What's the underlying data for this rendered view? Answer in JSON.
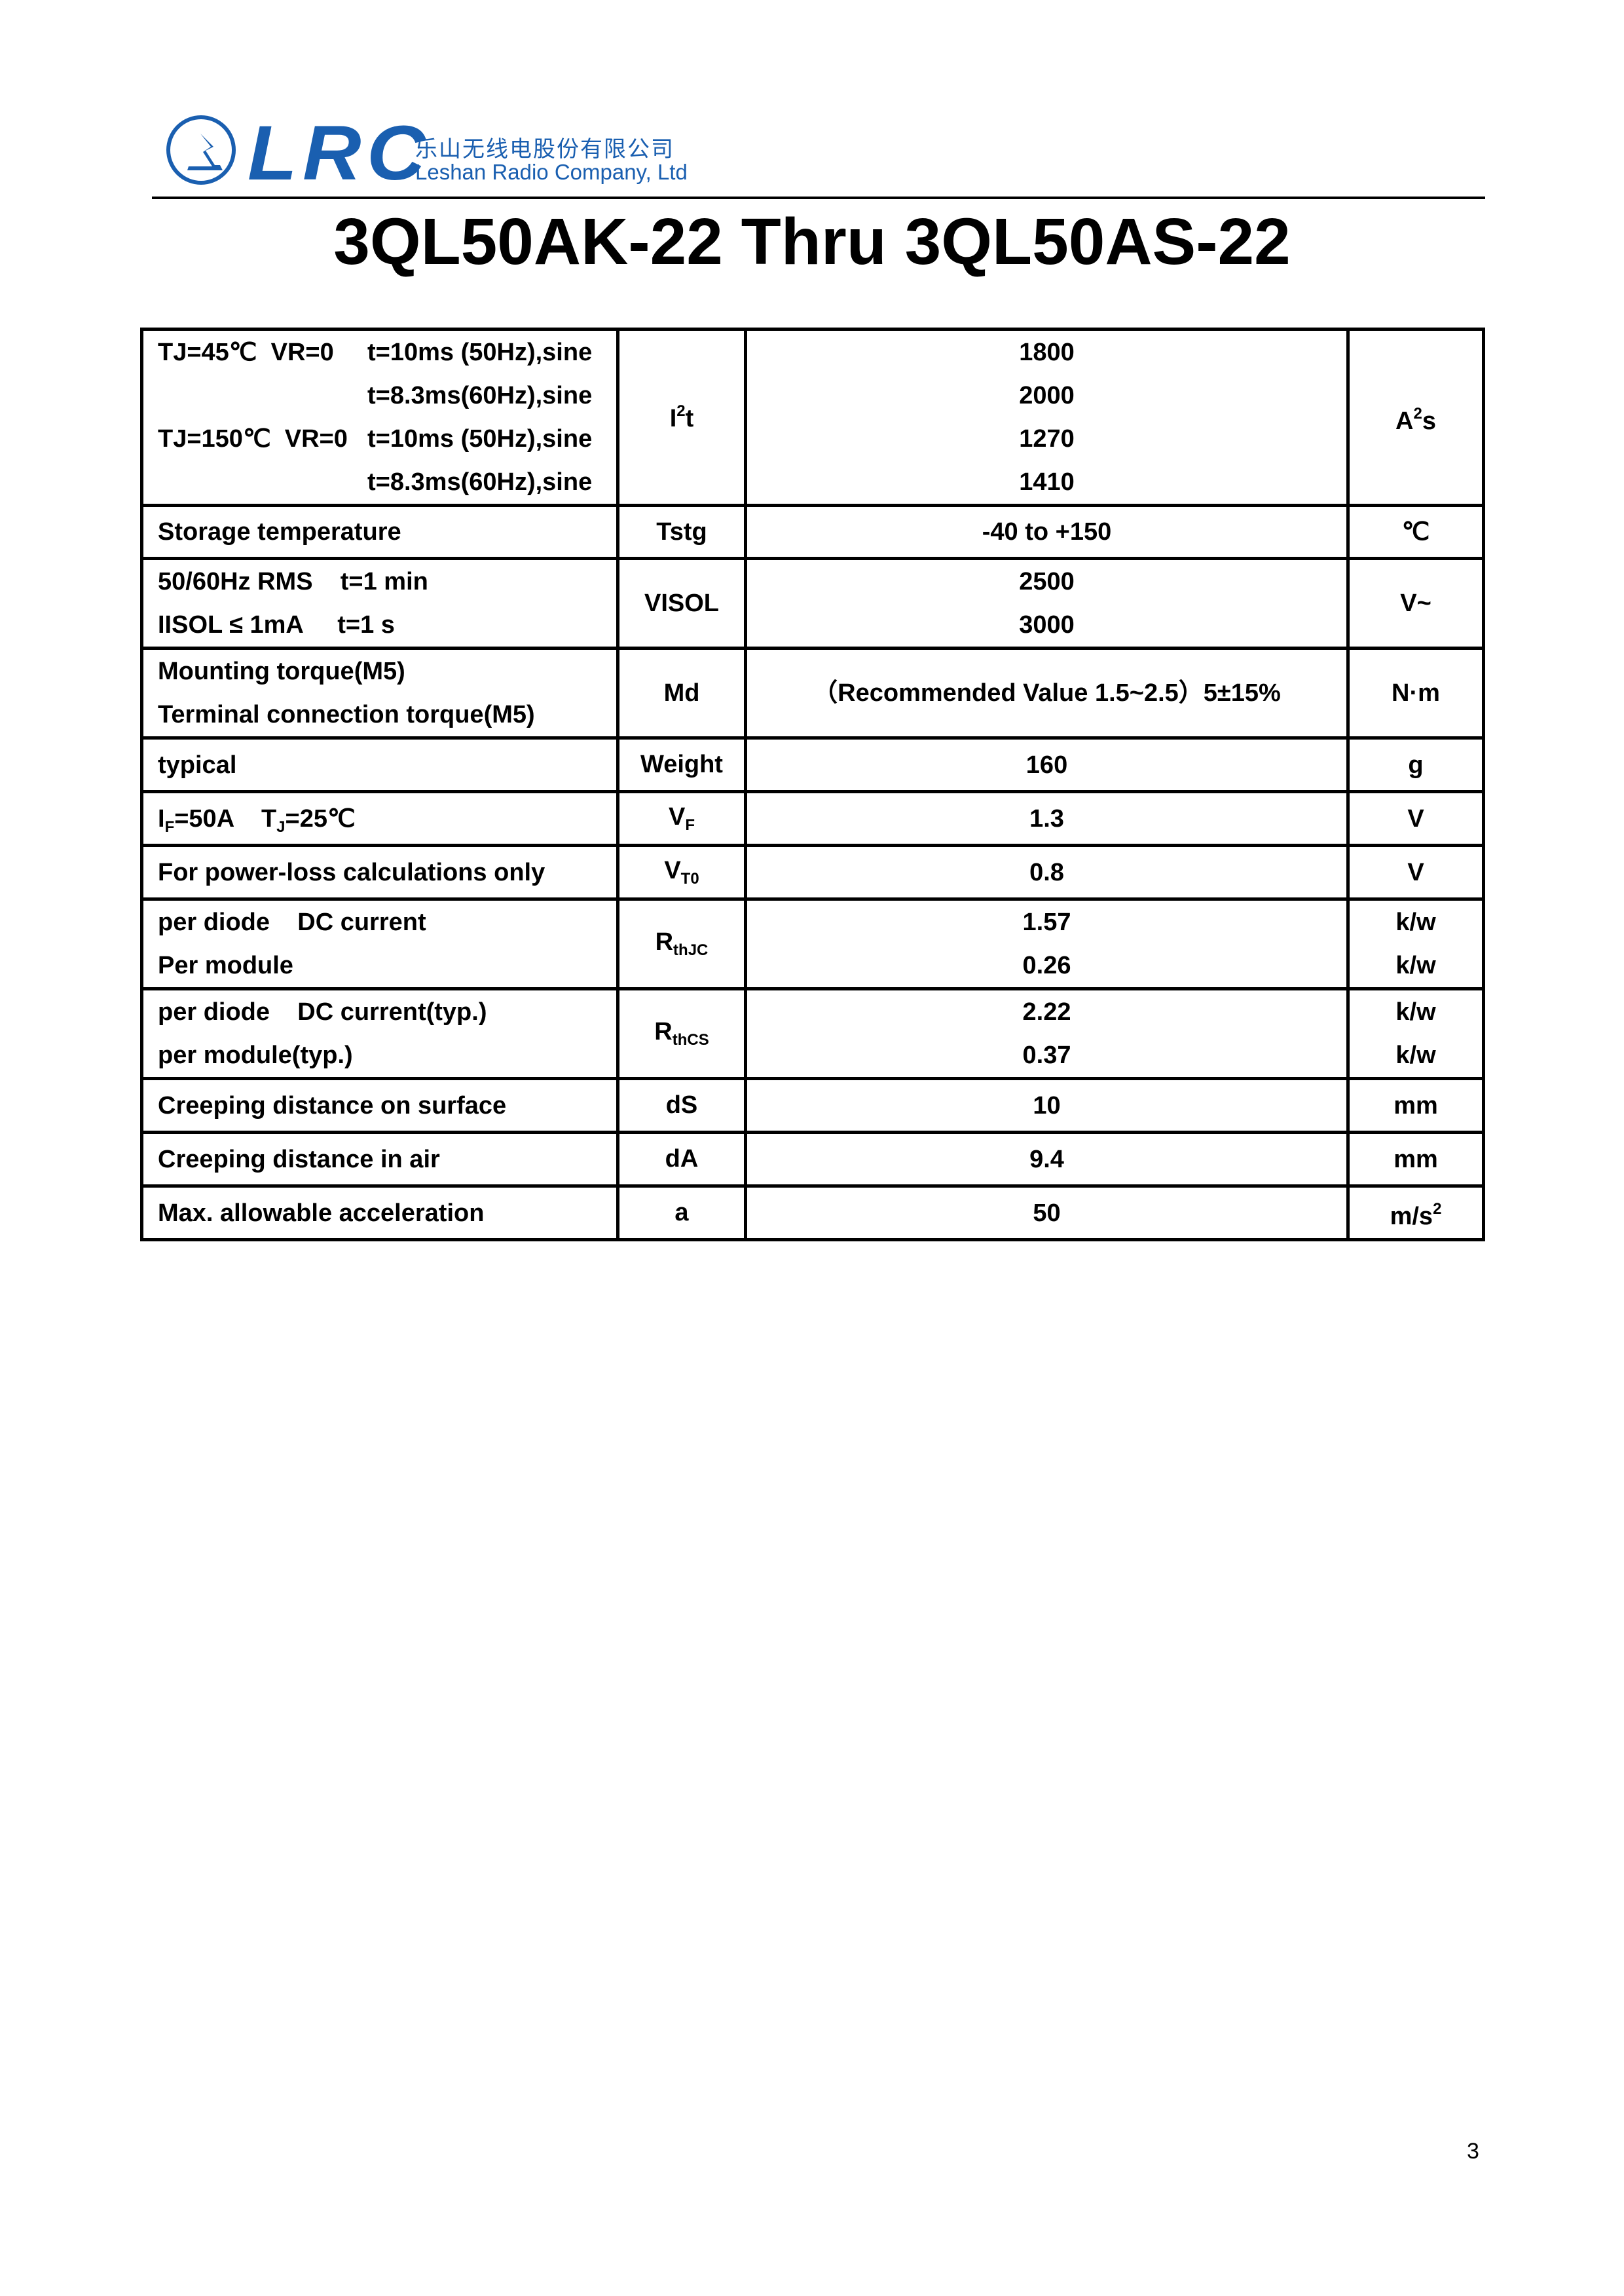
{
  "header": {
    "logo_text": "LRC",
    "company_cn": "乐山无线电股份有限公司",
    "company_en": "Leshan Radio Company, Ltd",
    "brand_color": "#1a5fb0"
  },
  "title": "3QL50AK-22 Thru 3QL50AS-22",
  "rows": [
    {
      "cond": [
        {
          "a": "TJ=45℃  VR=0",
          "b": "t=10ms (50Hz),sine"
        },
        {
          "a": "",
          "b": "t=8.3ms(60Hz),sine"
        },
        {
          "a": "TJ=150℃  VR=0",
          "b": "t=10ms (50Hz),sine"
        },
        {
          "a": "",
          "b": "t=8.3ms(60Hz),sine"
        }
      ],
      "sym": [
        {
          "t": "I"
        },
        {
          "t": "2",
          "s": "sup"
        },
        {
          "t": "t"
        }
      ],
      "vals": [
        "1800",
        "2000",
        "1270",
        "1410"
      ],
      "units": [
        [
          {
            "t": "A"
          },
          {
            "t": "2",
            "s": "sup"
          },
          {
            "t": "s"
          }
        ]
      ]
    },
    {
      "cond": [
        {
          "a": "Storage temperature"
        }
      ],
      "sym": [
        {
          "t": "Tstg"
        }
      ],
      "vals": [
        "-40 to +150"
      ],
      "units": [
        [
          {
            "t": "℃"
          }
        ]
      ]
    },
    {
      "cond": [
        {
          "a": "50/60Hz RMS    t=1 min"
        },
        {
          "a": "IISOL ≤ 1mA     t=1 s"
        }
      ],
      "sym": [
        {
          "t": "VISOL"
        }
      ],
      "vals": [
        "2500",
        "3000"
      ],
      "units": [
        [
          {
            "t": "V~"
          }
        ]
      ]
    },
    {
      "cond": [
        {
          "a": "Mounting torque(M5)"
        },
        {
          "a": "Terminal connection torque(M5)"
        }
      ],
      "sym": [
        {
          "t": "Md"
        }
      ],
      "vals": [
        "（Recommended Value 1.5~2.5）5±15%"
      ],
      "units": [
        [
          {
            "t": "N·m"
          }
        ]
      ]
    },
    {
      "cond": [
        {
          "a": "typical"
        }
      ],
      "sym": [
        {
          "t": "Weight"
        }
      ],
      "vals": [
        "160"
      ],
      "units": [
        [
          {
            "t": "g"
          }
        ]
      ]
    },
    {
      "cond": [
        {
          "seg": [
            {
              "t": "I"
            },
            {
              "t": "F",
              "s": "sub"
            },
            {
              "t": "=50A    T"
            },
            {
              "t": "J",
              "s": "sub"
            },
            {
              "t": "=25℃"
            }
          ]
        }
      ],
      "sym": [
        {
          "t": "V"
        },
        {
          "t": "F",
          "s": "sub"
        }
      ],
      "vals": [
        "1.3"
      ],
      "units": [
        [
          {
            "t": "V"
          }
        ]
      ]
    },
    {
      "cond": [
        {
          "a": "For power-loss calculations only"
        }
      ],
      "sym": [
        {
          "t": "V"
        },
        {
          "t": "T0",
          "s": "sub"
        }
      ],
      "vals": [
        "0.8"
      ],
      "units": [
        [
          {
            "t": "V"
          }
        ]
      ]
    },
    {
      "cond": [
        {
          "a": "per diode    DC current"
        },
        {
          "a": "Per module"
        }
      ],
      "sym": [
        {
          "t": "R"
        },
        {
          "t": "thJC",
          "s": "sub"
        }
      ],
      "vals": [
        "1.57",
        "0.26"
      ],
      "units": [
        [
          {
            "t": "k/w"
          }
        ],
        [
          {
            "t": "k/w"
          }
        ]
      ]
    },
    {
      "cond": [
        {
          "a": "per diode    DC current(typ.)"
        },
        {
          "a": "per module(typ.)"
        }
      ],
      "sym": [
        {
          "t": "R"
        },
        {
          "t": "thCS",
          "s": "sub"
        }
      ],
      "vals": [
        "2.22",
        "0.37"
      ],
      "units": [
        [
          {
            "t": "k/w"
          }
        ],
        [
          {
            "t": "k/w"
          }
        ]
      ]
    },
    {
      "cond": [
        {
          "a": "Creeping distance on surface"
        }
      ],
      "sym": [
        {
          "t": "dS"
        }
      ],
      "vals": [
        "10"
      ],
      "units": [
        [
          {
            "t": "mm"
          }
        ]
      ]
    },
    {
      "cond": [
        {
          "a": "Creeping distance in air"
        }
      ],
      "sym": [
        {
          "t": "dA"
        }
      ],
      "vals": [
        "9.4"
      ],
      "units": [
        [
          {
            "t": "mm"
          }
        ]
      ]
    },
    {
      "cond": [
        {
          "a": "Max. allowable acceleration"
        }
      ],
      "sym": [
        {
          "t": "a"
        }
      ],
      "vals": [
        "50"
      ],
      "units": [
        [
          {
            "t": "m/s"
          },
          {
            "t": "2",
            "s": "sup"
          }
        ]
      ]
    }
  ],
  "page_number": "3"
}
